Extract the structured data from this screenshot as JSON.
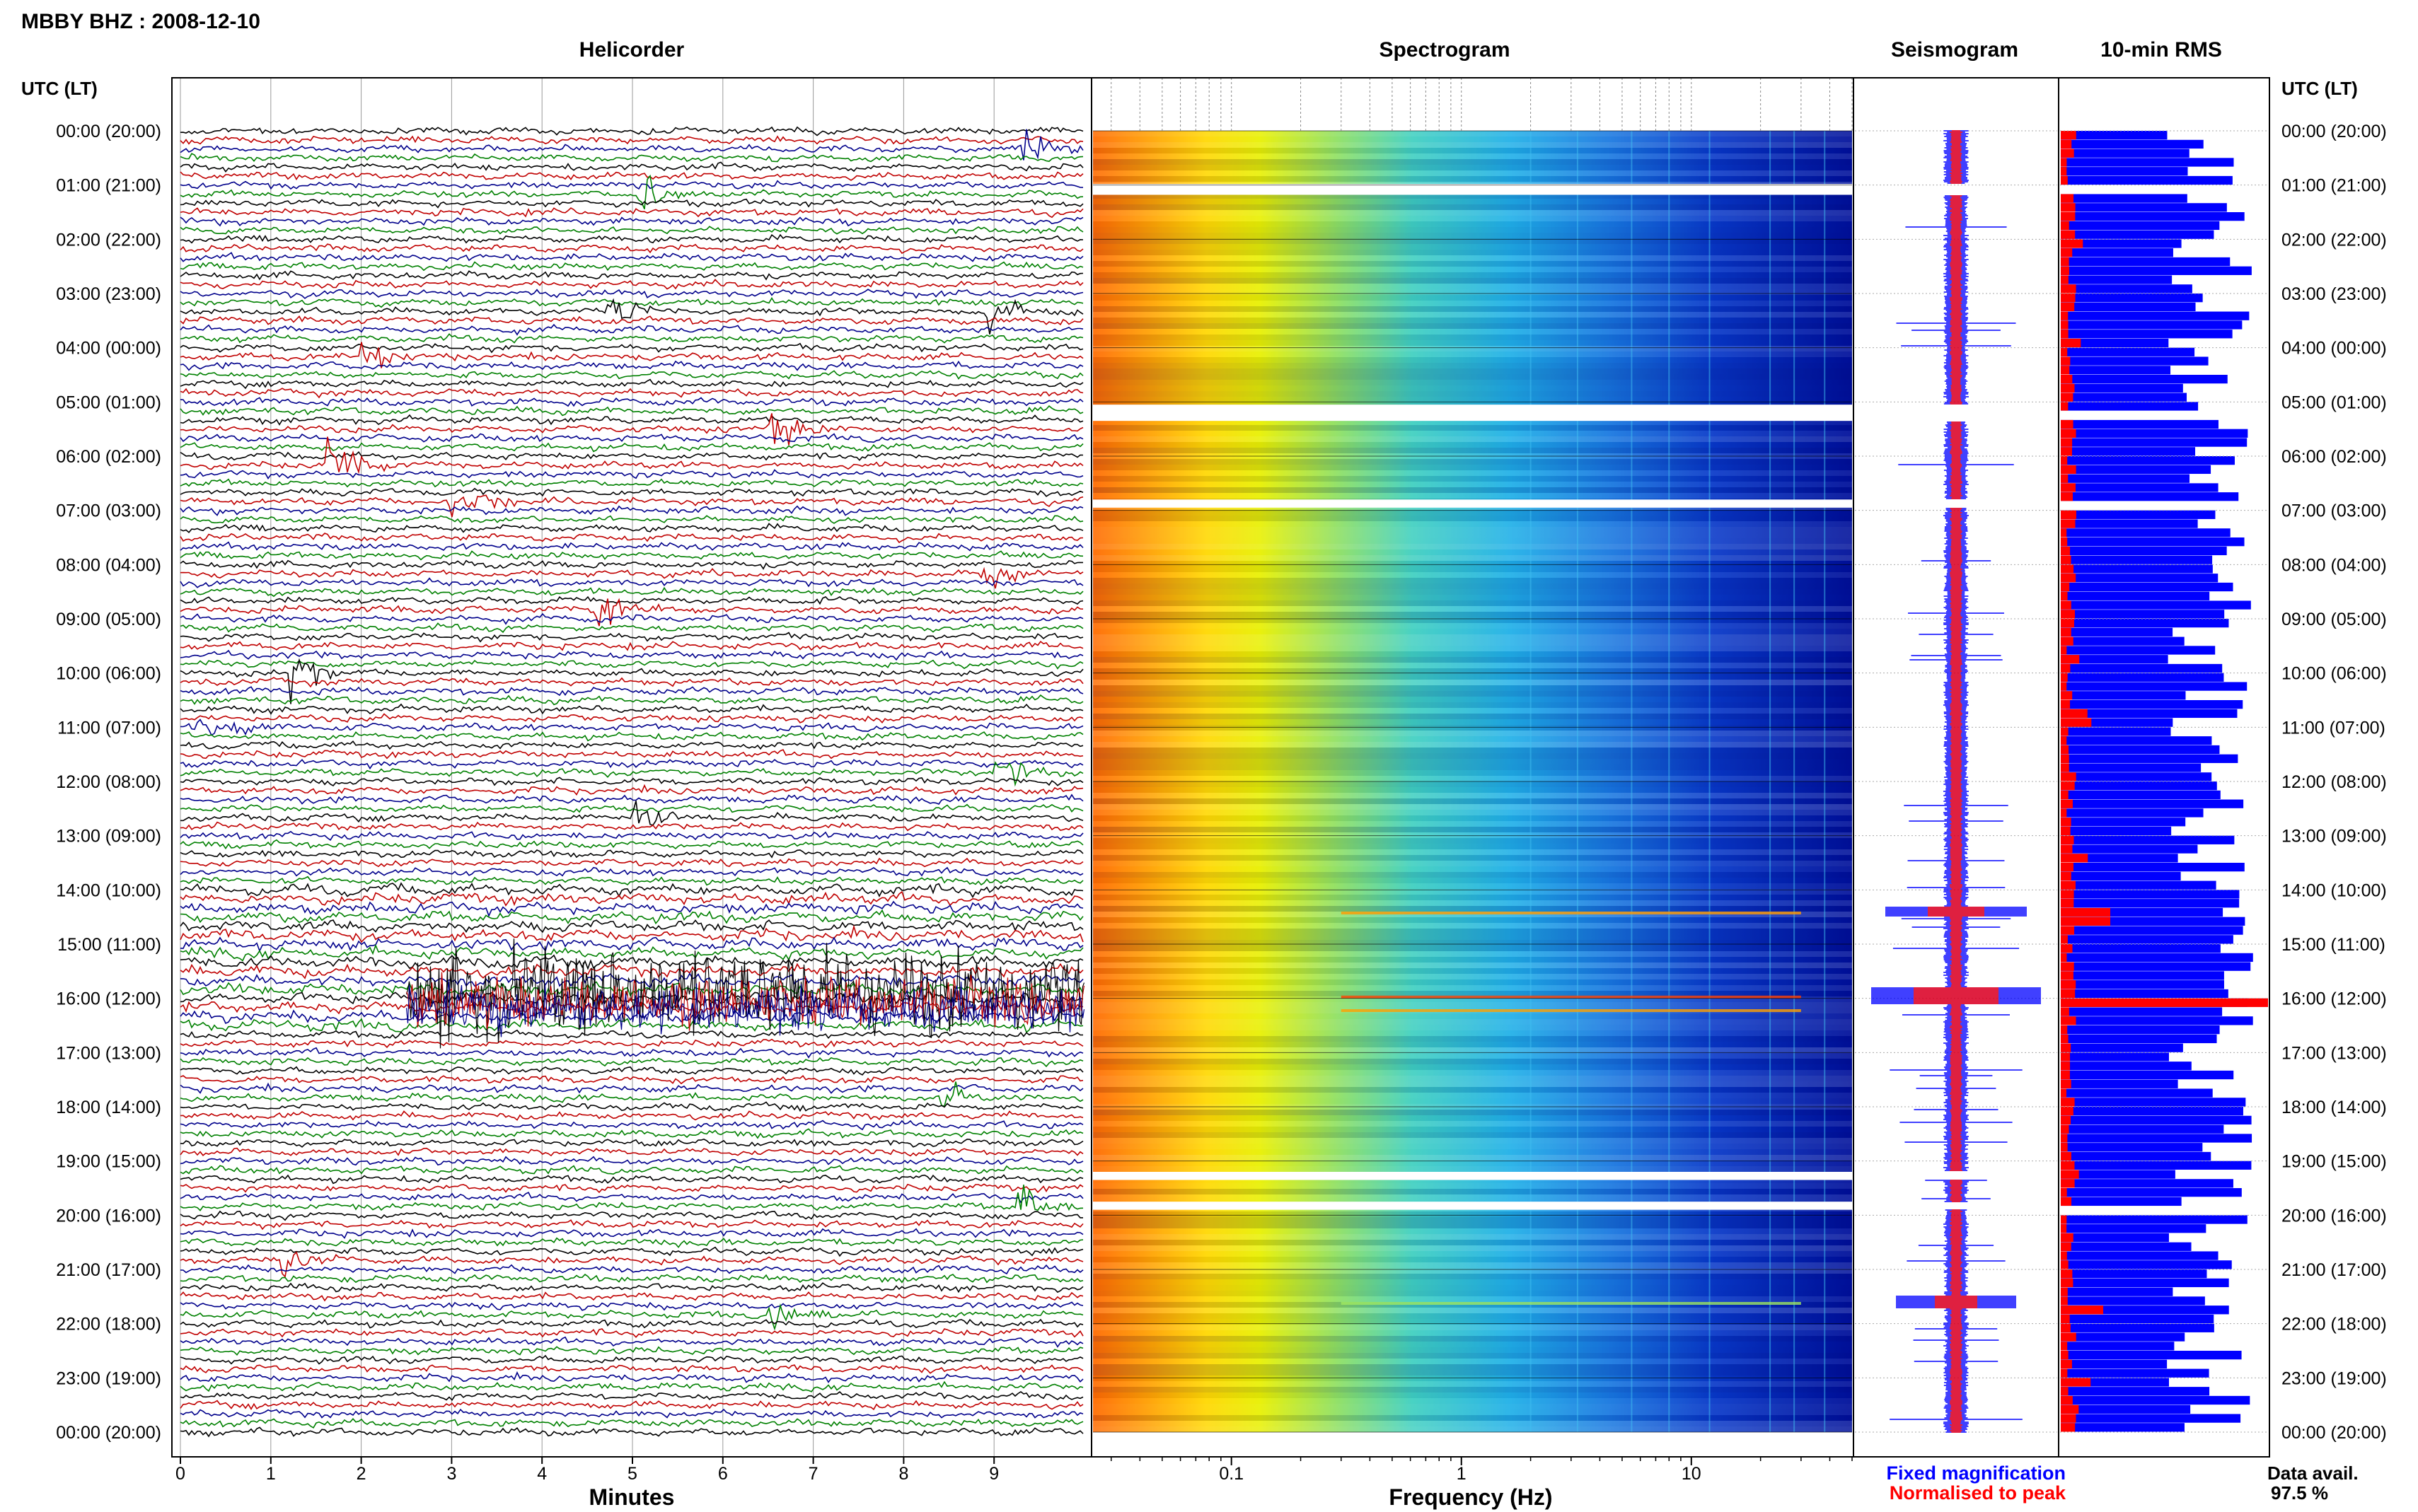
{
  "header": {
    "station_title": "MBBY BHZ : 2008-12-10"
  },
  "panels": {
    "helicorder": "Helicorder",
    "spectrogram": "Spectrogram",
    "seismogram": "Seismogram",
    "rms": "10-min RMS"
  },
  "axis_labels": {
    "utc_lt_left": "UTC (LT)",
    "utc_lt_right": "UTC (LT)",
    "minutes": "Minutes",
    "frequency": "Frequency (Hz)"
  },
  "legend": {
    "fixed": "Fixed magnification",
    "normalised": "Normalised to peak",
    "fixed_color": "#0000ff",
    "normalised_color": "#ff0000"
  },
  "availability": {
    "label": "Data avail.",
    "value": "97.5 %"
  },
  "time_labels": [
    "00:00 (20:00)",
    "01:00 (21:00)",
    "02:00 (22:00)",
    "03:00 (23:00)",
    "04:00 (00:00)",
    "05:00 (01:00)",
    "06:00 (02:00)",
    "07:00 (03:00)",
    "08:00 (04:00)",
    "09:00 (05:00)",
    "10:00 (06:00)",
    "11:00 (07:00)",
    "12:00 (08:00)",
    "13:00 (09:00)",
    "14:00 (10:00)",
    "15:00 (11:00)",
    "16:00 (12:00)",
    "17:00 (13:00)",
    "18:00 (14:00)",
    "19:00 (15:00)",
    "20:00 (16:00)",
    "21:00 (17:00)",
    "22:00 (18:00)",
    "23:00 (19:00)",
    "00:00 (20:00)"
  ],
  "minute_ticks": [
    "0",
    "1",
    "2",
    "3",
    "4",
    "5",
    "6",
    "7",
    "8",
    "9"
  ],
  "freq_ticks": [
    "0.1",
    "1",
    "10"
  ],
  "chart_data": {
    "type": "heatmap",
    "title": "MBBY BHZ : 2008-12-10",
    "panels": [
      "Helicorder",
      "Spectrogram",
      "Seismogram",
      "10-min RMS"
    ],
    "helicorder": {
      "xlabel": "Minutes",
      "xlim": [
        0,
        10
      ],
      "ylabel": "UTC (LT)",
      "trace_colors": [
        "#000000",
        "#c00000",
        "#00008b",
        "#008000"
      ],
      "lines_per_hour": 6,
      "events": [
        {
          "hour": 0.4,
          "minute": 9.3,
          "color": "#000000"
        },
        {
          "hour": 1.2,
          "minute": 5.05,
          "color": "#000000"
        },
        {
          "hour": 3.3,
          "minute": 4.7,
          "color": "#000000"
        },
        {
          "hour": 3.3,
          "minute": 8.9,
          "color": "#000000"
        },
        {
          "hour": 4.2,
          "minute": 2.0,
          "color": "#00008b"
        },
        {
          "hour": 5.5,
          "minute": 6.5,
          "color": "#00008b"
        },
        {
          "hour": 6.1,
          "minute": 1.6,
          "color": "#008000"
        },
        {
          "hour": 6.9,
          "minute": 2.95,
          "color": "#000000"
        },
        {
          "hour": 8.2,
          "minute": 8.85,
          "color": "#c00000"
        },
        {
          "hour": 8.8,
          "minute": 4.6,
          "color": "#00008b"
        },
        {
          "hour": 10.0,
          "minute": 1.2,
          "color": "#c00000"
        },
        {
          "hour": 11.0,
          "minute": 0.1,
          "color": "#008000"
        },
        {
          "hour": 11.8,
          "minute": 9.0,
          "color": "#00008b"
        },
        {
          "hour": 12.6,
          "minute": 5.0,
          "color": "#000000"
        },
        {
          "hour": 17.8,
          "minute": 8.4,
          "color": "#008000"
        },
        {
          "hour": 19.9,
          "minute": 9.25,
          "color": "#000000"
        },
        {
          "hour": 20.8,
          "minute": 1.1,
          "color": "#00008b"
        },
        {
          "hour": 21.9,
          "minute": 6.45,
          "color": "#000000"
        }
      ]
    },
    "spectrogram": {
      "xlabel": "Frequency (Hz)",
      "xscale": "log",
      "xlim": [
        0.025,
        50
      ],
      "data_gaps_hours": [
        [
          0.98,
          1.18
        ],
        [
          5.05,
          5.35
        ],
        [
          6.8,
          6.95
        ],
        [
          19.2,
          19.35
        ],
        [
          19.75,
          19.9
        ]
      ]
    },
    "rms": {
      "xlabel": "10-min RMS",
      "note": "blue = fixed magnification, red = normalised to peak"
    },
    "data_availability_percent": 97.5
  }
}
